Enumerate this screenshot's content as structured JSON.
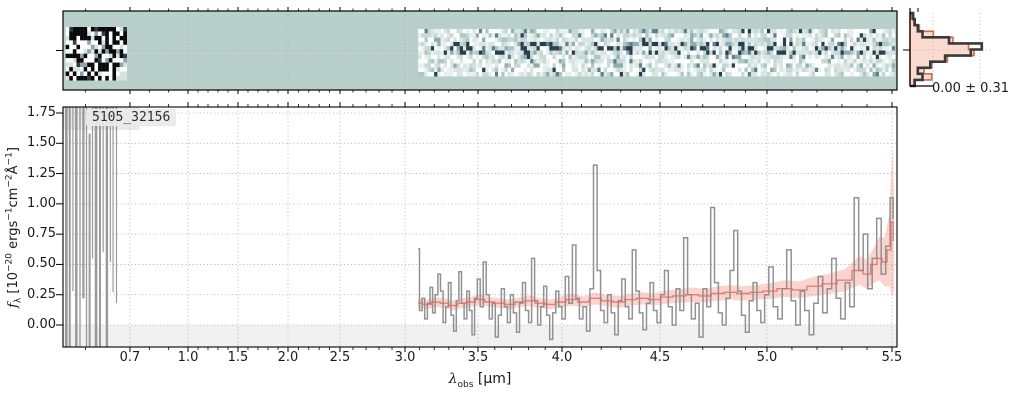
{
  "figure": {
    "title": "5105_32156"
  },
  "panel_2d": {
    "bg_color": "#b9cfca",
    "grid_wavelengths_um": [
      1.0,
      2.0,
      3.0,
      4.0,
      5.0
    ],
    "noise_block": {
      "x_range_um": [
        0.555,
        0.685
      ],
      "palette": [
        "#0a0a0a",
        "#ffffff",
        "#2c3e52",
        "#d8e2e0",
        "#8fa3ad"
      ]
    },
    "noise_strip": {
      "x_range_um": [
        3.09,
        5.52
      ],
      "palette": [
        "#ffffff",
        "#e9f1ef",
        "#d8e6e3",
        "#c6d9d6",
        "#adc7c4",
        "#8dadae",
        "#5f7f8f",
        "#2b3c4c"
      ]
    }
  },
  "histogram": {
    "stat_label": "0.00 ± 0.31",
    "dark_color": "#3a3a3a",
    "salmon_line_color": "#cf6a49",
    "salmon_fill_color": "rgba(246,168,140,0.42)",
    "bins_dark": [
      0.04,
      0.06,
      0.1,
      0.16,
      0.5,
      0.92,
      0.78,
      0.45,
      0.26,
      0.1,
      0.16,
      0.06
    ],
    "bins_salmon": [
      0.02,
      0.05,
      0.12,
      0.3,
      0.55,
      0.75,
      0.82,
      0.48,
      0.28,
      0.18,
      0.28,
      0.05
    ]
  },
  "labels": {
    "xlabel": {
      "base": "λ",
      "sub": "obs",
      "unit": " [μm]"
    },
    "ylabel": {
      "f": "f",
      "sub": "λ",
      "u1": " [10",
      "s1": "−20",
      "u2": " ergs",
      "s2": "−1",
      "u3": "cm",
      "s3": "−2",
      "u4": "Å",
      "s4": "−1",
      "u5": "]"
    }
  },
  "chart_data": {
    "type": "line",
    "title": "5105_32156",
    "xlabel": "lambda_obs [um]",
    "ylabel": "f_lambda [10^-20 ergs^-1 cm^-2 A^-1]",
    "xlim": [
      0.549,
      5.55
    ],
    "ylim": [
      -0.18,
      1.8
    ],
    "grid": true,
    "x_scale_control_points": [
      [
        0.549,
        0.0
      ],
      [
        0.7,
        0.0803
      ],
      [
        1.0,
        0.1499
      ],
      [
        1.5,
        0.2098
      ],
      [
        2.0,
        0.2698
      ],
      [
        2.5,
        0.3321
      ],
      [
        3.0,
        0.4101
      ],
      [
        3.5,
        0.4976
      ],
      [
        4.0,
        0.5983
      ],
      [
        4.5,
        0.7158
      ],
      [
        5.0,
        0.8441
      ],
      [
        5.5,
        0.994
      ],
      [
        5.55,
        1.0
      ]
    ],
    "x_ticks": [
      {
        "label": "0.7",
        "value": 0.7
      },
      {
        "label": "1.0",
        "value": 1.0
      },
      {
        "label": "1.5",
        "value": 1.5
      },
      {
        "label": "2.0",
        "value": 2.0
      },
      {
        "label": "2.5",
        "value": 2.5
      },
      {
        "label": "3.0",
        "value": 3.0
      },
      {
        "label": "3.5",
        "value": 3.5
      },
      {
        "label": "4.0",
        "value": 4.0
      },
      {
        "label": "4.5",
        "value": 4.5
      },
      {
        "label": "5.0",
        "value": 5.0
      },
      {
        "label": "5.5",
        "value": 5.5
      }
    ],
    "x_minor_step": 0.1,
    "y_ticks": [
      {
        "label": "1.75",
        "value": 1.75
      },
      {
        "label": "1.50",
        "value": 1.5
      },
      {
        "label": "1.25",
        "value": 1.25
      },
      {
        "label": "1.00",
        "value": 1.0
      },
      {
        "label": "0.75",
        "value": 0.75
      },
      {
        "label": "0.50",
        "value": 0.5
      },
      {
        "label": "0.25",
        "value": 0.25
      },
      {
        "label": "0.00",
        "value": 0.0
      }
    ],
    "below_zero_shade_color": "#f1f1f1",
    "series": [
      {
        "name": "observed_spectrum",
        "color": "#8c8c8c",
        "x_start": 3.09,
        "x_step": 0.018,
        "y": [
          0.63,
          0.12,
          0.22,
          0.05,
          0.18,
          0.31,
          0.1,
          0.25,
          0.42,
          0.28,
          0.02,
          0.15,
          0.35,
          0.08,
          -0.05,
          0.2,
          0.44,
          0.18,
          0.05,
          0.28,
          0.12,
          -0.08,
          0.22,
          0.38,
          0.15,
          0.52,
          0.25,
          0.05,
          0.18,
          -0.1,
          0.08,
          0.3,
          0.15,
          0.02,
          0.25,
          0.1,
          -0.06,
          0.18,
          0.35,
          0.12,
          0.02,
          0.55,
          0.2,
          0.0,
          0.15,
          0.32,
          0.08,
          -0.12,
          0.1,
          0.28,
          0.15,
          0.05,
          0.4,
          0.18,
          0.66,
          0.22,
          0.05,
          0.15,
          -0.05,
          0.3,
          1.32,
          0.45,
          0.12,
          0.02,
          0.25,
          0.1,
          -0.08,
          0.2,
          0.38,
          0.15,
          0.05,
          0.62,
          0.28,
          0.1,
          -0.04,
          0.18,
          0.35,
          0.12,
          0.02,
          0.25,
          0.45,
          0.15,
          0.0,
          0.3,
          0.12,
          0.72,
          0.25,
          0.05,
          0.18,
          -0.1,
          0.3,
          0.15,
          0.97,
          0.35,
          0.1,
          0.0,
          0.22,
          0.45,
          0.78,
          0.28,
          0.08,
          -0.06,
          0.2,
          0.35,
          0.12,
          0.02,
          0.25,
          0.48,
          0.15,
          0.05,
          0.3,
          0.62,
          0.2,
          0.0,
          0.28,
          0.12,
          -0.08,
          0.18,
          0.4,
          0.1,
          0.3,
          0.55,
          0.22,
          0.05,
          0.35,
          0.15,
          1.05,
          0.45,
          0.75,
          0.3,
          0.55,
          0.88,
          0.42,
          0.65,
          1.05,
          0.88
        ]
      },
      {
        "name": "model_spectrum",
        "color": "#d96a6a",
        "band_color": "rgba(240,120,100,0.32)",
        "x": [
          3.09,
          3.15,
          3.21,
          3.27,
          3.33,
          3.39,
          3.45,
          3.51,
          3.57,
          3.63,
          3.69,
          3.75,
          3.81,
          3.87,
          3.93,
          3.99,
          4.05,
          4.11,
          4.17,
          4.23,
          4.29,
          4.35,
          4.41,
          4.47,
          4.53,
          4.59,
          4.65,
          4.71,
          4.77,
          4.83,
          4.89,
          4.95,
          5.01,
          5.07,
          5.13,
          5.19,
          5.25,
          5.31,
          5.37,
          5.4,
          5.43,
          5.45,
          5.47,
          5.49,
          5.505,
          5.52
        ],
        "y": [
          0.18,
          0.17,
          0.19,
          0.18,
          0.16,
          0.18,
          0.19,
          0.21,
          0.19,
          0.18,
          0.17,
          0.19,
          0.2,
          0.18,
          0.17,
          0.19,
          0.21,
          0.19,
          0.22,
          0.2,
          0.19,
          0.21,
          0.22,
          0.21,
          0.23,
          0.24,
          0.25,
          0.24,
          0.26,
          0.27,
          0.26,
          0.27,
          0.28,
          0.3,
          0.29,
          0.32,
          0.34,
          0.37,
          0.45,
          0.42,
          0.5,
          0.55,
          0.52,
          0.62,
          0.85,
          0.7
        ],
        "err": [
          0.04,
          0.04,
          0.04,
          0.04,
          0.04,
          0.04,
          0.04,
          0.045,
          0.04,
          0.04,
          0.04,
          0.04,
          0.045,
          0.04,
          0.04,
          0.045,
          0.05,
          0.045,
          0.05,
          0.045,
          0.05,
          0.05,
          0.05,
          0.05,
          0.055,
          0.055,
          0.06,
          0.055,
          0.06,
          0.06,
          0.06,
          0.06,
          0.065,
          0.07,
          0.07,
          0.08,
          0.085,
          0.09,
          0.12,
          0.12,
          0.15,
          0.18,
          0.2,
          0.3,
          0.62,
          0.4
        ]
      }
    ],
    "saturated_bars": [
      {
        "x": 0.5535,
        "w": 0.006,
        "y0": -0.2,
        "y1": 1.8
      },
      {
        "x": 0.562,
        "w": 0.0045,
        "y0": -0.2,
        "y1": 1.8
      },
      {
        "x": 0.57,
        "w": 0.002,
        "y0": 0.28,
        "y1": 1.8
      },
      {
        "x": 0.5762,
        "w": 0.0055,
        "y0": -0.2,
        "y1": 1.8
      },
      {
        "x": 0.5858,
        "w": 0.003,
        "y0": -0.2,
        "y1": 1.8
      },
      {
        "x": 0.5925,
        "w": 0.005,
        "y0": 0.22,
        "y1": 1.8
      },
      {
        "x": 0.6005,
        "w": 0.003,
        "y0": -0.2,
        "y1": 1.8
      },
      {
        "x": 0.6068,
        "w": 0.0045,
        "y0": -0.2,
        "y1": 1.58
      },
      {
        "x": 0.6142,
        "w": 0.002,
        "y0": 0.55,
        "y1": 1.8
      },
      {
        "x": 0.6205,
        "w": 0.006,
        "y0": -0.2,
        "y1": 1.8
      },
      {
        "x": 0.6302,
        "w": 0.0045,
        "y0": -0.2,
        "y1": 1.8
      },
      {
        "x": 0.6382,
        "w": 0.002,
        "y0": 0.6,
        "y1": 1.8
      },
      {
        "x": 0.6452,
        "w": 0.0055,
        "y0": -0.2,
        "y1": 1.8
      },
      {
        "x": 0.6545,
        "w": 0.0018,
        "y0": 0.52,
        "y1": 1.8
      },
      {
        "x": 0.6605,
        "w": 0.0018,
        "y0": 0.27,
        "y1": 1.8
      },
      {
        "x": 0.6682,
        "w": 0.0018,
        "y0": 0.18,
        "y1": 1.8
      }
    ]
  }
}
